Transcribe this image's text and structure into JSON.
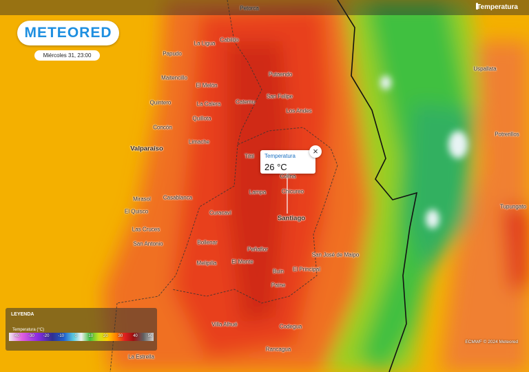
{
  "header": {
    "title": "Temperatura"
  },
  "logo": "METEORED",
  "date": "Miércoles 31, 23:00",
  "popup": {
    "title": "Temperatura",
    "value": "26 °C"
  },
  "places": [
    "Petorca",
    "La Ligua",
    "Cabildo",
    "Papudo",
    "Maitencillo",
    "El Melón",
    "Putaendo",
    "Quintero",
    "La Calera",
    "Catemu",
    "San Felipe",
    "Los Andes",
    "Quillota",
    "Concón",
    "Limache",
    "Valparaíso",
    "Tiltil",
    "Colina",
    "Lampa",
    "Chicureo",
    "Curacaví",
    "Casablanca",
    "Mirasol",
    "El Quisco",
    "Las Cruces",
    "San Antonio",
    "Santiago",
    "Bollenar",
    "Peñaflor",
    "Melipilla",
    "El Monte",
    "San José de Maipo",
    "Buin",
    "El Principal",
    "Paine",
    "Villa Alhué",
    "Codegua",
    "Rancagua",
    "La Estrella",
    "Uspallata",
    "Potrerillos",
    "Tupungato"
  ],
  "legend": {
    "title": "LEYENDA",
    "subtitle": "Temperatura (°C)",
    "ticks": [
      -40,
      -30,
      -20,
      -10,
      0,
      10,
      20,
      30,
      40,
      50
    ]
  },
  "credit": "ECMWF © 2024 Meteored"
}
